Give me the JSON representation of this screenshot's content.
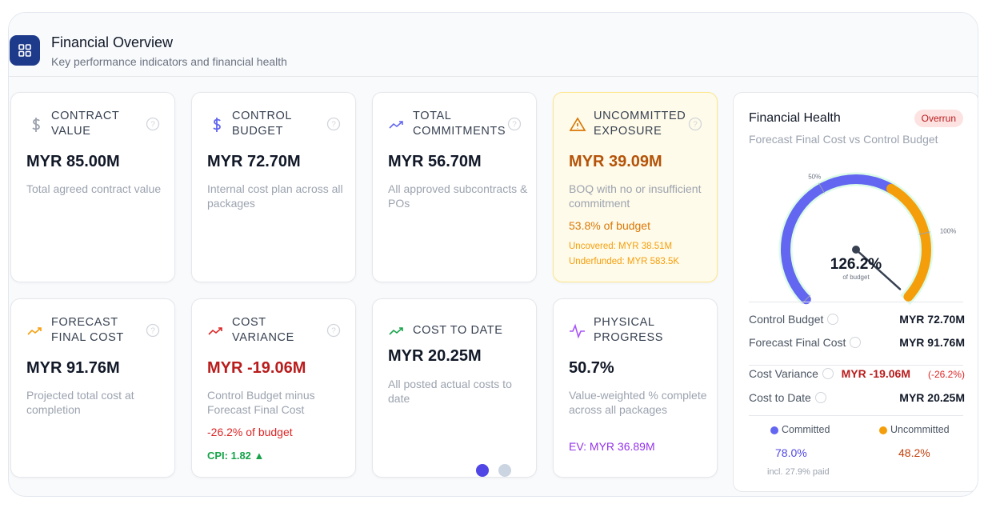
{
  "header": {
    "title": "Financial Overview",
    "subtitle": "Key performance indicators and financial health"
  },
  "cards": [
    {
      "label": "CONTRACT VALUE",
      "value": "MYR 85.00M",
      "description": "Total agreed contract value",
      "extra": []
    },
    {
      "label": "CONTROL BUDGET",
      "value": "MYR 72.70M",
      "description": "Internal cost plan across all packages",
      "extra": []
    },
    {
      "label": "TOTAL COMMITMENTS",
      "value": "MYR 56.70M",
      "description": "All approved subcontracts & POs",
      "extra": []
    },
    {
      "label": "UNCOMMITTED EXPOSURE",
      "value": "MYR 39.09M",
      "description": "BOQ with no or insufficient commitment",
      "extra": [
        "53.8% of budget",
        "Uncovered: MYR 38.51M",
        "Underfunded: MYR 583.5K"
      ]
    },
    {
      "label": "FORECAST FINAL COST",
      "value": "MYR 91.76M",
      "description": "Projected total cost at completion",
      "extra": []
    },
    {
      "label": "COST VARIANCE",
      "value": "MYR -19.06M",
      "description": "Control Budget minus Forecast Final Cost",
      "extra": [
        "-26.2% of budget",
        "CPI: 1.82"
      ]
    },
    {
      "label": "COST TO DATE",
      "value": "MYR 20.25M",
      "description": "All posted actual costs to date",
      "extra": []
    },
    {
      "label": "PHYSICAL PROGRESS",
      "value": "50.7%",
      "description": "Value-weighted % complete across all packages",
      "extra": [
        "EV: MYR 36.89M"
      ]
    }
  ],
  "health": {
    "title": "Financial Health",
    "badge": "Overrun",
    "subtitle": "Forecast Final Cost vs Control Budget",
    "gauge": {
      "lim": [
        0,
        130
      ],
      "ticks": [
        {
          "value": 0,
          "label": "0%"
        },
        {
          "value": 50,
          "label": "50%"
        },
        {
          "value": 100,
          "label": "100%"
        }
      ],
      "value": 126.2,
      "value_label": "126.2%",
      "caption": "of budget"
    },
    "rows": [
      {
        "label": "Control Budget",
        "value": "MYR 72.70M"
      },
      {
        "label": "Forecast Final Cost",
        "value": "MYR 91.76M"
      },
      {
        "label": "Cost Variance",
        "value": "MYR -19.06M",
        "note": "(-26.2%)"
      },
      {
        "label": "Cost to Date",
        "value": "MYR 20.25M"
      }
    ],
    "legend": [
      {
        "name": "Committed",
        "value": 78.0,
        "value_label": "78.0%",
        "color": "#6366f1"
      },
      {
        "name": "Uncommitted",
        "value": 48.2,
        "value_label": "48.2%",
        "color": "#f59e0b"
      }
    ],
    "footnote": "incl. 27.9% paid"
  }
}
